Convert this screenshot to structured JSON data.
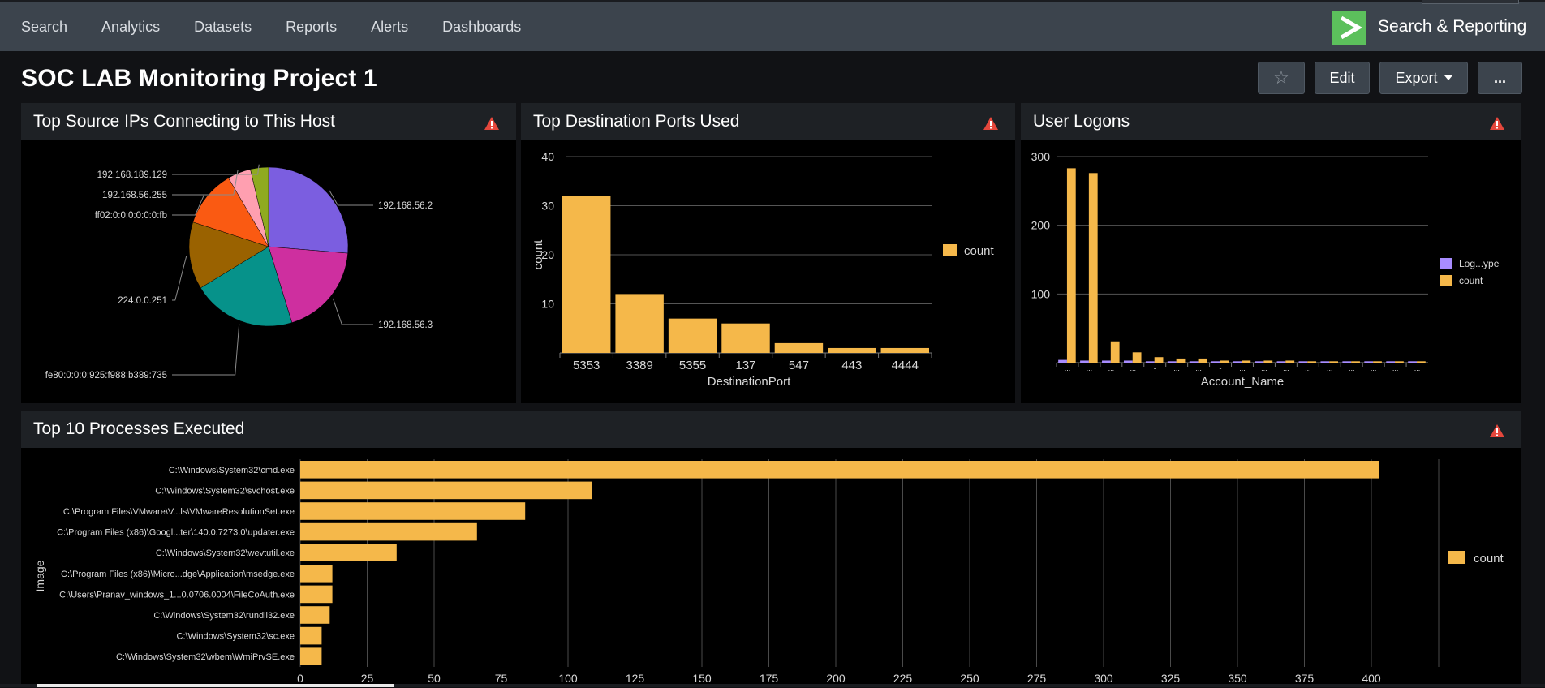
{
  "nav": {
    "items": [
      "Search",
      "Analytics",
      "Datasets",
      "Reports",
      "Alerts",
      "Dashboards"
    ],
    "app_title": "Search & Reporting"
  },
  "page": {
    "title": "SOC LAB Monitoring Project 1"
  },
  "toolbar": {
    "star_icon": "☆",
    "edit_label": "Edit",
    "export_label": "Export",
    "more_label": "..."
  },
  "colors": {
    "bar": "#f5b84a",
    "topbar": "#3c444d",
    "warn": "#e5473c",
    "app_logo": "#5cc05c",
    "purple": "#a88cff"
  },
  "panels": {
    "source_ips": {
      "title": "Top Source IPs Connecting to This Host"
    },
    "dest_ports": {
      "title": "Top Destination Ports Used"
    },
    "user_logons": {
      "title": "User Logons"
    },
    "processes": {
      "title": "Top 10 Processes Executed"
    }
  },
  "chart_data": [
    {
      "type": "pie",
      "labels": [
        "192.168.56.2",
        "192.168.56.3",
        "fe80:0:0:0:925:f988:b389:735",
        "224.0.0.251",
        "ff02:0:0:0:0:0:0:fb",
        "192.168.56.255",
        "192.168.189.129"
      ],
      "values": [
        25,
        18,
        20,
        13,
        11,
        4.5,
        3.5
      ],
      "colors": [
        "#7b5ee0",
        "#ce2f9f",
        "#06928a",
        "#9a6200",
        "#fa5a12",
        "#ff9fb0",
        "#8faa1f"
      ]
    },
    {
      "type": "bar",
      "categories": [
        "5353",
        "3389",
        "5355",
        "137",
        "547",
        "443",
        "4444"
      ],
      "series": [
        {
          "name": "count",
          "values": [
            32,
            12,
            7,
            6,
            2,
            1,
            1
          ]
        }
      ],
      "xlabel": "DestinationPort",
      "ylabel": "count",
      "ylim": [
        0,
        40
      ],
      "yticks": [
        10,
        20,
        30,
        40
      ],
      "legend": "right"
    },
    {
      "type": "bar",
      "categories": [
        "...",
        "...",
        "...",
        "...",
        "-",
        "...",
        "...",
        "-",
        "...",
        "...",
        "...",
        "...",
        "...",
        "...",
        "...",
        "...",
        "..."
      ],
      "series": [
        {
          "name": "Log...ype",
          "values": [
            4,
            3,
            3,
            3,
            2,
            2,
            2,
            2,
            2,
            2,
            2,
            2,
            2,
            2,
            2,
            2,
            2
          ]
        },
        {
          "name": "count",
          "values": [
            283,
            276,
            31,
            15,
            8,
            6,
            6,
            3,
            3,
            3,
            3,
            2,
            2,
            2,
            2,
            2,
            2
          ]
        }
      ],
      "xlabel": "Account_Name",
      "ylabel": "",
      "ylim": [
        0,
        300
      ],
      "yticks": [
        100,
        200,
        300
      ],
      "legend": "right"
    },
    {
      "type": "bar",
      "orientation": "horizontal",
      "categories": [
        "C:\\Windows\\System32\\cmd.exe",
        "C:\\Windows\\System32\\svchost.exe",
        "C:\\Program Files\\VMware\\V...ls\\VMwareResolutionSet.exe",
        "C:\\Program Files (x86)\\Googl...ter\\140.0.7273.0\\updater.exe",
        "C:\\Windows\\System32\\wevtutil.exe",
        "C:\\Program Files (x86)\\Micro...dge\\Application\\msedge.exe",
        "C:\\Users\\Pranav_windows_1...0.0706.0004\\FileCoAuth.exe",
        "C:\\Windows\\System32\\rundll32.exe",
        "C:\\Windows\\System32\\sc.exe",
        "C:\\Windows\\System32\\wbem\\WmiPrvSE.exe"
      ],
      "series": [
        {
          "name": "count",
          "values": [
            403,
            109,
            84,
            66,
            36,
            12,
            12,
            11,
            8,
            8
          ]
        }
      ],
      "xlabel": "",
      "ylabel": "Image",
      "xlim": [
        0,
        425
      ],
      "xticks": [
        0,
        25,
        50,
        75,
        100,
        125,
        150,
        175,
        200,
        225,
        250,
        275,
        300,
        325,
        350,
        375,
        400
      ],
      "legend": "right"
    }
  ]
}
